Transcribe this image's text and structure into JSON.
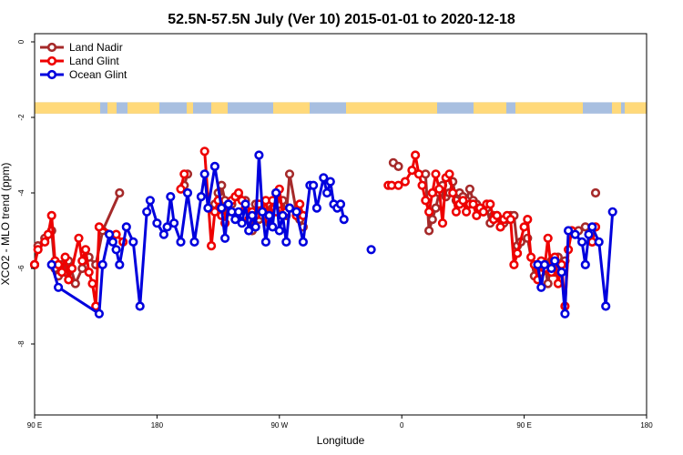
{
  "chart_data": {
    "type": "line",
    "title": "52.5N-57.5N July (Ver 10)   2015-01-01 to 2020-12-18",
    "xlabel": "Longitude",
    "ylabel": "XCO2 - MLO trend (ppm)",
    "xlim": [
      90,
      450
    ],
    "ylim": [
      -10,
      0.6
    ],
    "x_ticks": [
      {
        "value": 90,
        "label": "90 E"
      },
      {
        "value": 162,
        "label": "180"
      },
      {
        "value": 234,
        "label": "90 W"
      },
      {
        "value": 306,
        "label": "0"
      },
      {
        "value": 378,
        "label": "90 E"
      },
      {
        "value": 450,
        "label": "180"
      }
    ],
    "y_ticks": [
      {
        "value": 0,
        "label": "0"
      },
      {
        "value": -2,
        "label": "-2"
      },
      {
        "value": -4,
        "label": "-4"
      },
      {
        "value": -6,
        "label": "-6"
      },
      {
        "value": -8,
        "label": "-8"
      }
    ],
    "grid": false,
    "legend_position": "top-left",
    "map_strip": {
      "y_top": -1.6,
      "y_bottom": -1.9,
      "land_color": "#ffd97a",
      "ocean_color": "#a8bfe0"
    },
    "series": [
      {
        "name": "Land Nadir",
        "color": "#a52a2a",
        "segments": [
          [
            [
              90,
              -5.9
            ],
            [
              92,
              -5.4
            ],
            [
              96,
              -5.2
            ],
            [
              100,
              -5.0
            ],
            [
              102,
              -6.0
            ],
            [
              104,
              -6.2
            ],
            [
              106,
              -5.9
            ],
            [
              108,
              -6.1
            ],
            [
              110,
              -5.8
            ],
            [
              114,
              -6.4
            ],
            [
              118,
              -6.0
            ],
            [
              122,
              -5.7
            ],
            [
              126,
              -5.9
            ],
            [
              130,
              -5.0
            ],
            [
              140,
              -4.0
            ]
          ],
          [
            [
              178,
              -3.8
            ],
            [
              180,
              -3.5
            ]
          ],
          [
            [
              196,
              -4.3
            ],
            [
              198,
              -4.0
            ],
            [
              200,
              -3.8
            ],
            [
              202,
              -4.2
            ],
            [
              204,
              -4.5
            ],
            [
              206,
              -4.3
            ],
            [
              210,
              -4.1
            ],
            [
              214,
              -4.2
            ],
            [
              218,
              -5.0
            ],
            [
              220,
              -4.3
            ],
            [
              222,
              -4.7
            ],
            [
              224,
              -4.6
            ],
            [
              226,
              -4.5
            ],
            [
              228,
              -4.8
            ],
            [
              230,
              -4.4
            ],
            [
              232,
              -4.0
            ],
            [
              234,
              -4.3
            ],
            [
              236,
              -4.2
            ],
            [
              238,
              -4.6
            ],
            [
              240,
              -3.5
            ],
            [
              244,
              -4.5
            ],
            [
              246,
              -4.7
            ],
            [
              248,
              -4.9
            ]
          ],
          [
            [
              301,
              -3.2
            ],
            [
              304,
              -3.3
            ]
          ],
          [
            [
              320,
              -3.5
            ],
            [
              322,
              -5.0
            ],
            [
              324,
              -4.7
            ],
            [
              326,
              -4.4
            ],
            [
              328,
              -4.0
            ],
            [
              330,
              -3.8
            ],
            [
              332,
              -4.1
            ],
            [
              334,
              -4.0
            ],
            [
              336,
              -3.7
            ],
            [
              338,
              -4.2
            ],
            [
              340,
              -4.0
            ],
            [
              342,
              -4.1
            ],
            [
              344,
              -4.2
            ],
            [
              346,
              -3.9
            ],
            [
              348,
              -4.2
            ],
            [
              350,
              -4.3
            ],
            [
              352,
              -4.4
            ],
            [
              354,
              -4.5
            ],
            [
              356,
              -4.4
            ],
            [
              358,
              -4.8
            ],
            [
              360,
              -4.6
            ],
            [
              362,
              -4.6
            ],
            [
              364,
              -4.9
            ],
            [
              366,
              -4.8
            ],
            [
              368,
              -4.7
            ],
            [
              370,
              -4.6
            ],
            [
              372,
              -4.6
            ],
            [
              374,
              -5.4
            ],
            [
              376,
              -5.3
            ],
            [
              380,
              -5.2
            ],
            [
              384,
              -6.2
            ],
            [
              386,
              -5.9
            ],
            [
              388,
              -6.1
            ],
            [
              390,
              -5.9
            ],
            [
              392,
              -6.4
            ],
            [
              394,
              -5.8
            ],
            [
              396,
              -6.1
            ],
            [
              398,
              -5.7
            ],
            [
              400,
              -5.9
            ],
            [
              402,
              -5.8
            ]
          ],
          [
            [
              420,
              -4.0
            ]
          ],
          [
            [
              410,
              -5.0
            ],
            [
              414,
              -4.9
            ],
            [
              418,
              -5.3
            ]
          ]
        ]
      },
      {
        "name": "Land Glint",
        "color": "#ee0000",
        "segments": [
          [
            [
              90,
              -5.9
            ],
            [
              92,
              -5.5
            ],
            [
              96,
              -5.3
            ],
            [
              98,
              -5.1
            ],
            [
              100,
              -4.6
            ],
            [
              102,
              -5.8
            ],
            [
              104,
              -5.9
            ],
            [
              106,
              -6.1
            ],
            [
              108,
              -5.7
            ],
            [
              110,
              -6.3
            ],
            [
              112,
              -6.0
            ],
            [
              116,
              -5.2
            ],
            [
              118,
              -5.8
            ],
            [
              120,
              -5.5
            ],
            [
              122,
              -6.1
            ],
            [
              124,
              -6.4
            ],
            [
              126,
              -7.0
            ],
            [
              128,
              -4.9
            ],
            [
              138,
              -5.1
            ],
            [
              142,
              -5.3
            ]
          ],
          [
            [
              176,
              -3.9
            ],
            [
              178,
              -3.5
            ]
          ],
          [
            [
              190,
              -2.9
            ],
            [
              194,
              -5.4
            ],
            [
              196,
              -4.5
            ],
            [
              198,
              -4.2
            ],
            [
              200,
              -4.6
            ],
            [
              202,
              -4.8
            ],
            [
              204,
              -4.3
            ],
            [
              206,
              -4.2
            ],
            [
              208,
              -4.1
            ],
            [
              210,
              -4.0
            ],
            [
              212,
              -4.2
            ],
            [
              214,
              -4.4
            ],
            [
              216,
              -4.7
            ],
            [
              218,
              -4.5
            ],
            [
              220,
              -4.6
            ],
            [
              222,
              -4.3
            ],
            [
              224,
              -4.5
            ],
            [
              226,
              -4.2
            ],
            [
              228,
              -4.7
            ],
            [
              230,
              -4.2
            ],
            [
              232,
              -4.5
            ],
            [
              234,
              -3.9
            ],
            [
              236,
              -4.6
            ],
            [
              238,
              -4.5
            ],
            [
              240,
              -4.4
            ],
            [
              244,
              -4.6
            ],
            [
              246,
              -4.3
            ],
            [
              248,
              -4.6
            ]
          ],
          [
            [
              298,
              -3.8
            ],
            [
              300,
              -3.8
            ],
            [
              304,
              -3.8
            ],
            [
              308,
              -3.7
            ],
            [
              312,
              -3.4
            ],
            [
              314,
              -3.0
            ],
            [
              316,
              -3.5
            ],
            [
              318,
              -3.8
            ],
            [
              320,
              -4.2
            ],
            [
              322,
              -4.5
            ],
            [
              324,
              -4.0
            ],
            [
              326,
              -3.5
            ],
            [
              328,
              -3.9
            ],
            [
              330,
              -4.8
            ],
            [
              332,
              -3.6
            ],
            [
              334,
              -3.5
            ],
            [
              336,
              -4.0
            ],
            [
              338,
              -4.5
            ],
            [
              340,
              -4.3
            ],
            [
              342,
              -4.2
            ],
            [
              344,
              -4.5
            ],
            [
              346,
              -4.3
            ],
            [
              348,
              -4.3
            ],
            [
              350,
              -4.6
            ],
            [
              352,
              -4.4
            ],
            [
              354,
              -4.5
            ],
            [
              356,
              -4.3
            ],
            [
              358,
              -4.3
            ],
            [
              360,
              -4.7
            ],
            [
              362,
              -4.6
            ],
            [
              364,
              -4.9
            ],
            [
              366,
              -4.7
            ],
            [
              368,
              -4.6
            ],
            [
              370,
              -4.7
            ],
            [
              372,
              -5.9
            ],
            [
              374,
              -5.6
            ],
            [
              378,
              -4.9
            ],
            [
              380,
              -4.7
            ],
            [
              382,
              -5.7
            ],
            [
              384,
              -5.9
            ],
            [
              386,
              -6.3
            ],
            [
              388,
              -5.8
            ],
            [
              390,
              -6.0
            ],
            [
              392,
              -5.2
            ],
            [
              394,
              -6.1
            ],
            [
              396,
              -5.7
            ],
            [
              398,
              -6.4
            ],
            [
              400,
              -5.9
            ],
            [
              402,
              -7.0
            ],
            [
              404,
              -5.5
            ],
            [
              406,
              -5.0
            ]
          ],
          [
            [
              418,
              -5.3
            ],
            [
              420,
              -4.9
            ]
          ]
        ]
      },
      {
        "name": "Ocean Glint",
        "color": "#0000dd",
        "segments": [
          [
            [
              100,
              -5.9
            ],
            [
              104,
              -6.5
            ],
            [
              128,
              -7.2
            ],
            [
              130,
              -5.9
            ],
            [
              134,
              -5.1
            ],
            [
              136,
              -5.3
            ],
            [
              138,
              -5.5
            ],
            [
              140,
              -5.9
            ],
            [
              144,
              -4.9
            ],
            [
              148,
              -5.3
            ],
            [
              152,
              -7.0
            ],
            [
              156,
              -4.5
            ],
            [
              158,
              -4.2
            ],
            [
              162,
              -4.8
            ],
            [
              166,
              -5.1
            ],
            [
              168,
              -4.9
            ],
            [
              170,
              -4.1
            ],
            [
              172,
              -4.8
            ],
            [
              176,
              -5.3
            ],
            [
              180,
              -4.0
            ],
            [
              184,
              -5.3
            ],
            [
              188,
              -4.1
            ],
            [
              190,
              -3.5
            ],
            [
              192,
              -4.4
            ],
            [
              196,
              -3.3
            ],
            [
              200,
              -4.4
            ],
            [
              202,
              -5.2
            ],
            [
              204,
              -4.3
            ],
            [
              206,
              -4.5
            ],
            [
              208,
              -4.7
            ],
            [
              210,
              -4.5
            ],
            [
              212,
              -4.8
            ],
            [
              214,
              -4.3
            ],
            [
              216,
              -5.0
            ],
            [
              218,
              -4.6
            ],
            [
              220,
              -4.9
            ],
            [
              222,
              -3.0
            ],
            [
              224,
              -4.5
            ],
            [
              226,
              -5.3
            ],
            [
              228,
              -4.6
            ],
            [
              230,
              -4.9
            ],
            [
              232,
              -4.0
            ],
            [
              234,
              -5.0
            ],
            [
              236,
              -4.6
            ],
            [
              238,
              -5.3
            ],
            [
              240,
              -4.4
            ],
            [
              244,
              -4.5
            ],
            [
              248,
              -5.3
            ],
            [
              252,
              -3.8
            ],
            [
              254,
              -3.8
            ],
            [
              256,
              -4.4
            ],
            [
              260,
              -3.6
            ],
            [
              262,
              -4.0
            ],
            [
              264,
              -3.7
            ],
            [
              266,
              -4.3
            ],
            [
              268,
              -4.4
            ],
            [
              270,
              -4.3
            ],
            [
              272,
              -4.7
            ]
          ],
          [
            [
              288,
              -5.5
            ]
          ],
          [
            [
              386,
              -5.9
            ],
            [
              388,
              -6.5
            ],
            [
              390,
              -5.9
            ],
            [
              394,
              -6.0
            ],
            [
              396,
              -5.8
            ],
            [
              400,
              -6.1
            ],
            [
              402,
              -7.2
            ],
            [
              404,
              -5.0
            ],
            [
              408,
              -5.1
            ],
            [
              412,
              -5.3
            ],
            [
              414,
              -5.9
            ],
            [
              416,
              -5.1
            ],
            [
              418,
              -4.9
            ],
            [
              422,
              -5.3
            ],
            [
              426,
              -7.0
            ],
            [
              430,
              -4.5
            ]
          ]
        ]
      }
    ]
  }
}
